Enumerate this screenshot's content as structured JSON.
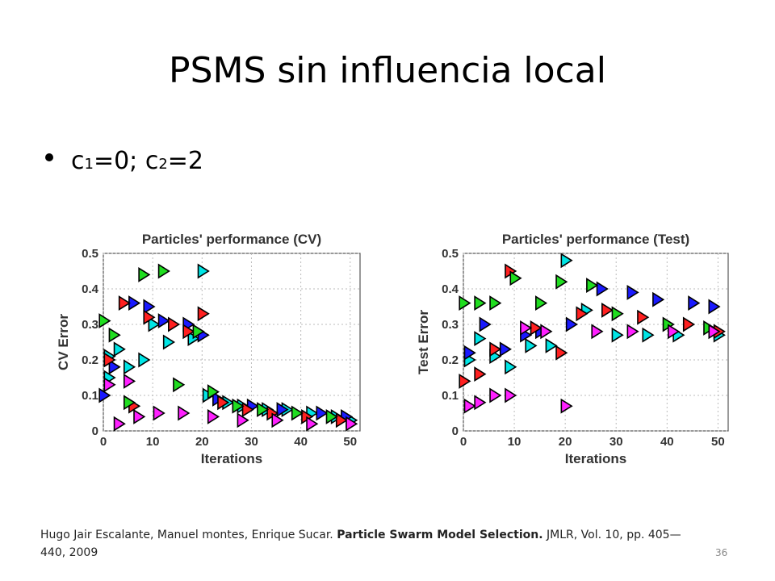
{
  "slide": {
    "title": "PSMS sin influencia local",
    "bullet": {
      "c": "c",
      "sub1": "1",
      "mid": "=0; c",
      "sub2": "2",
      "end": "=2"
    },
    "citation": {
      "authors": "Hugo Jair Escalante, Manuel montes, Enrique Sucar. ",
      "paper_title": "Particle Swarm Model Selection.",
      "rest": " JMLR, Vol. 10, pp. 405—440, 2009"
    },
    "page_number": "36"
  },
  "marker_colors": [
    "#00e5e5",
    "#1a1aff",
    "#ff2020",
    "#20dd20",
    "#ff20ff"
  ],
  "chart_data": [
    {
      "type": "scatter",
      "title": "Particles' performance (CV)",
      "xlabel": "Iterations",
      "ylabel": "CV Error",
      "xlim": [
        0,
        52
      ],
      "ylim": [
        0,
        0.5
      ],
      "xticks": [
        0,
        10,
        20,
        30,
        40,
        50
      ],
      "xtick_labels": [
        "0",
        "10",
        "20",
        "30",
        "40",
        "50"
      ],
      "yticks": [
        0,
        0.1,
        0.2,
        0.3,
        0.4,
        0.5
      ],
      "ytick_labels": [
        "0",
        "0.1",
        "0.2",
        "0.3",
        "0.4",
        "0.5"
      ],
      "grid": true,
      "series": [
        {
          "color": "cyan",
          "points": [
            [
              1,
              0.21
            ],
            [
              1,
              0.15
            ],
            [
              3,
              0.23
            ],
            [
              5,
              0.18
            ],
            [
              8,
              0.2
            ],
            [
              10,
              0.3
            ],
            [
              13,
              0.25
            ],
            [
              18,
              0.26
            ],
            [
              20,
              0.45
            ],
            [
              21,
              0.1
            ],
            [
              25,
              0.08
            ],
            [
              28,
              0.07
            ],
            [
              33,
              0.06
            ],
            [
              37,
              0.06
            ],
            [
              42,
              0.05
            ],
            [
              47,
              0.04
            ],
            [
              50,
              0.03
            ]
          ]
        },
        {
          "color": "blue",
          "points": [
            [
              0,
              0.1
            ],
            [
              2,
              0.18
            ],
            [
              6,
              0.36
            ],
            [
              9,
              0.35
            ],
            [
              12,
              0.31
            ],
            [
              17,
              0.3
            ],
            [
              20,
              0.27
            ],
            [
              23,
              0.09
            ],
            [
              30,
              0.07
            ],
            [
              36,
              0.06
            ],
            [
              44,
              0.05
            ],
            [
              49,
              0.04
            ]
          ]
        },
        {
          "color": "red",
          "points": [
            [
              1,
              0.2
            ],
            [
              4,
              0.36
            ],
            [
              6,
              0.07
            ],
            [
              9,
              0.32
            ],
            [
              14,
              0.3
            ],
            [
              17,
              0.28
            ],
            [
              20,
              0.33
            ],
            [
              24,
              0.08
            ],
            [
              29,
              0.06
            ],
            [
              34,
              0.05
            ],
            [
              41,
              0.04
            ],
            [
              48,
              0.03
            ]
          ]
        },
        {
          "color": "green",
          "points": [
            [
              0,
              0.31
            ],
            [
              2,
              0.27
            ],
            [
              5,
              0.08
            ],
            [
              8,
              0.44
            ],
            [
              12,
              0.45
            ],
            [
              15,
              0.13
            ],
            [
              19,
              0.28
            ],
            [
              22,
              0.11
            ],
            [
              27,
              0.07
            ],
            [
              32,
              0.06
            ],
            [
              39,
              0.05
            ],
            [
              46,
              0.04
            ]
          ]
        },
        {
          "color": "magenta",
          "points": [
            [
              1,
              0.13
            ],
            [
              3,
              0.02
            ],
            [
              5,
              0.14
            ],
            [
              7,
              0.04
            ],
            [
              11,
              0.05
            ],
            [
              16,
              0.05
            ],
            [
              22,
              0.04
            ],
            [
              28,
              0.03
            ],
            [
              35,
              0.03
            ],
            [
              42,
              0.02
            ],
            [
              50,
              0.02
            ]
          ]
        }
      ]
    },
    {
      "type": "scatter",
      "title": "Particles' performance (Test)",
      "xlabel": "Iterations",
      "ylabel": "Test Error",
      "xlim": [
        0,
        52
      ],
      "ylim": [
        0,
        0.5
      ],
      "xticks": [
        0,
        10,
        20,
        30,
        40,
        50
      ],
      "xtick_labels": [
        "0",
        "10",
        "20",
        "30",
        "40",
        "50"
      ],
      "yticks": [
        0,
        0.1,
        0.2,
        0.3,
        0.4,
        0.5
      ],
      "ytick_labels": [
        "0",
        "0.1",
        "0.2",
        "0.3",
        "0.4",
        "0.5"
      ],
      "grid": true,
      "series": [
        {
          "color": "cyan",
          "points": [
            [
              1,
              0.2
            ],
            [
              3,
              0.26
            ],
            [
              6,
              0.21
            ],
            [
              9,
              0.18
            ],
            [
              13,
              0.24
            ],
            [
              17,
              0.24
            ],
            [
              20,
              0.48
            ],
            [
              24,
              0.34
            ],
            [
              30,
              0.27
            ],
            [
              36,
              0.27
            ],
            [
              42,
              0.27
            ],
            [
              50,
              0.27
            ]
          ]
        },
        {
          "color": "blue",
          "points": [
            [
              1,
              0.22
            ],
            [
              4,
              0.3
            ],
            [
              8,
              0.23
            ],
            [
              12,
              0.27
            ],
            [
              15,
              0.28
            ],
            [
              21,
              0.3
            ],
            [
              27,
              0.4
            ],
            [
              33,
              0.39
            ],
            [
              38,
              0.37
            ],
            [
              45,
              0.36
            ],
            [
              49,
              0.35
            ]
          ]
        },
        {
          "color": "red",
          "points": [
            [
              0,
              0.14
            ],
            [
              3,
              0.16
            ],
            [
              6,
              0.23
            ],
            [
              9,
              0.45
            ],
            [
              14,
              0.29
            ],
            [
              19,
              0.22
            ],
            [
              23,
              0.33
            ],
            [
              28,
              0.34
            ],
            [
              35,
              0.32
            ],
            [
              44,
              0.3
            ],
            [
              50,
              0.28
            ]
          ]
        },
        {
          "color": "green",
          "points": [
            [
              0,
              0.36
            ],
            [
              3,
              0.36
            ],
            [
              6,
              0.36
            ],
            [
              10,
              0.43
            ],
            [
              15,
              0.36
            ],
            [
              19,
              0.42
            ],
            [
              25,
              0.41
            ],
            [
              30,
              0.33
            ],
            [
              40,
              0.3
            ],
            [
              48,
              0.29
            ]
          ]
        },
        {
          "color": "magenta",
          "points": [
            [
              1,
              0.07
            ],
            [
              3,
              0.08
            ],
            [
              6,
              0.1
            ],
            [
              9,
              0.1
            ],
            [
              12,
              0.29
            ],
            [
              16,
              0.28
            ],
            [
              20,
              0.07
            ],
            [
              26,
              0.28
            ],
            [
              33,
              0.28
            ],
            [
              41,
              0.28
            ],
            [
              49,
              0.28
            ]
          ]
        }
      ]
    }
  ]
}
